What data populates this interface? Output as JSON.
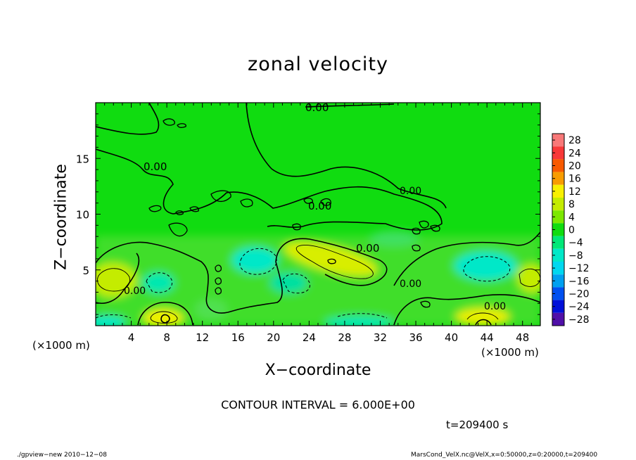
{
  "chart_data": {
    "type": "heatmap",
    "title": "zonal velocity",
    "xlabel": "X−coordinate",
    "ylabel": "Z−coordinate",
    "x_units_label": "(×1000 m)",
    "y_units_label": "(×1000 m)",
    "xlim": [
      0,
      50
    ],
    "ylim": [
      0,
      20
    ],
    "x_ticks": [
      4,
      8,
      12,
      16,
      20,
      24,
      28,
      32,
      36,
      40,
      44,
      48
    ],
    "y_ticks": [
      5,
      10,
      15
    ],
    "contour_labels": [
      "0.00",
      "0.00",
      "0.00",
      "0.00",
      "0.00",
      "0.00",
      "0.00",
      "0.00"
    ],
    "colorbar": {
      "levels": [
        "28",
        "24",
        "20",
        "16",
        "12",
        "8",
        "4",
        "0",
        "−4",
        "−8",
        "−12",
        "−16",
        "−20",
        "−24",
        "−28"
      ],
      "colors": [
        "#f87878",
        "#f83838",
        "#f85a00",
        "#f89c00",
        "#f8f000",
        "#c4ec00",
        "#7ce800",
        "#10dc10",
        "#00e878",
        "#00e8c8",
        "#00d8f0",
        "#00a0f0",
        "#0050f0",
        "#0010d8",
        "#5010a8"
      ]
    },
    "contour_interval": "CONTOUR INTERVAL = 6.000E+00",
    "time": "t=209400 s",
    "footer_left": "./gpview−new   2010−12−08",
    "footer_right": "MarsCond_VelX.nc@VelX,x=0:50000,z=0:20000,t=209400"
  }
}
